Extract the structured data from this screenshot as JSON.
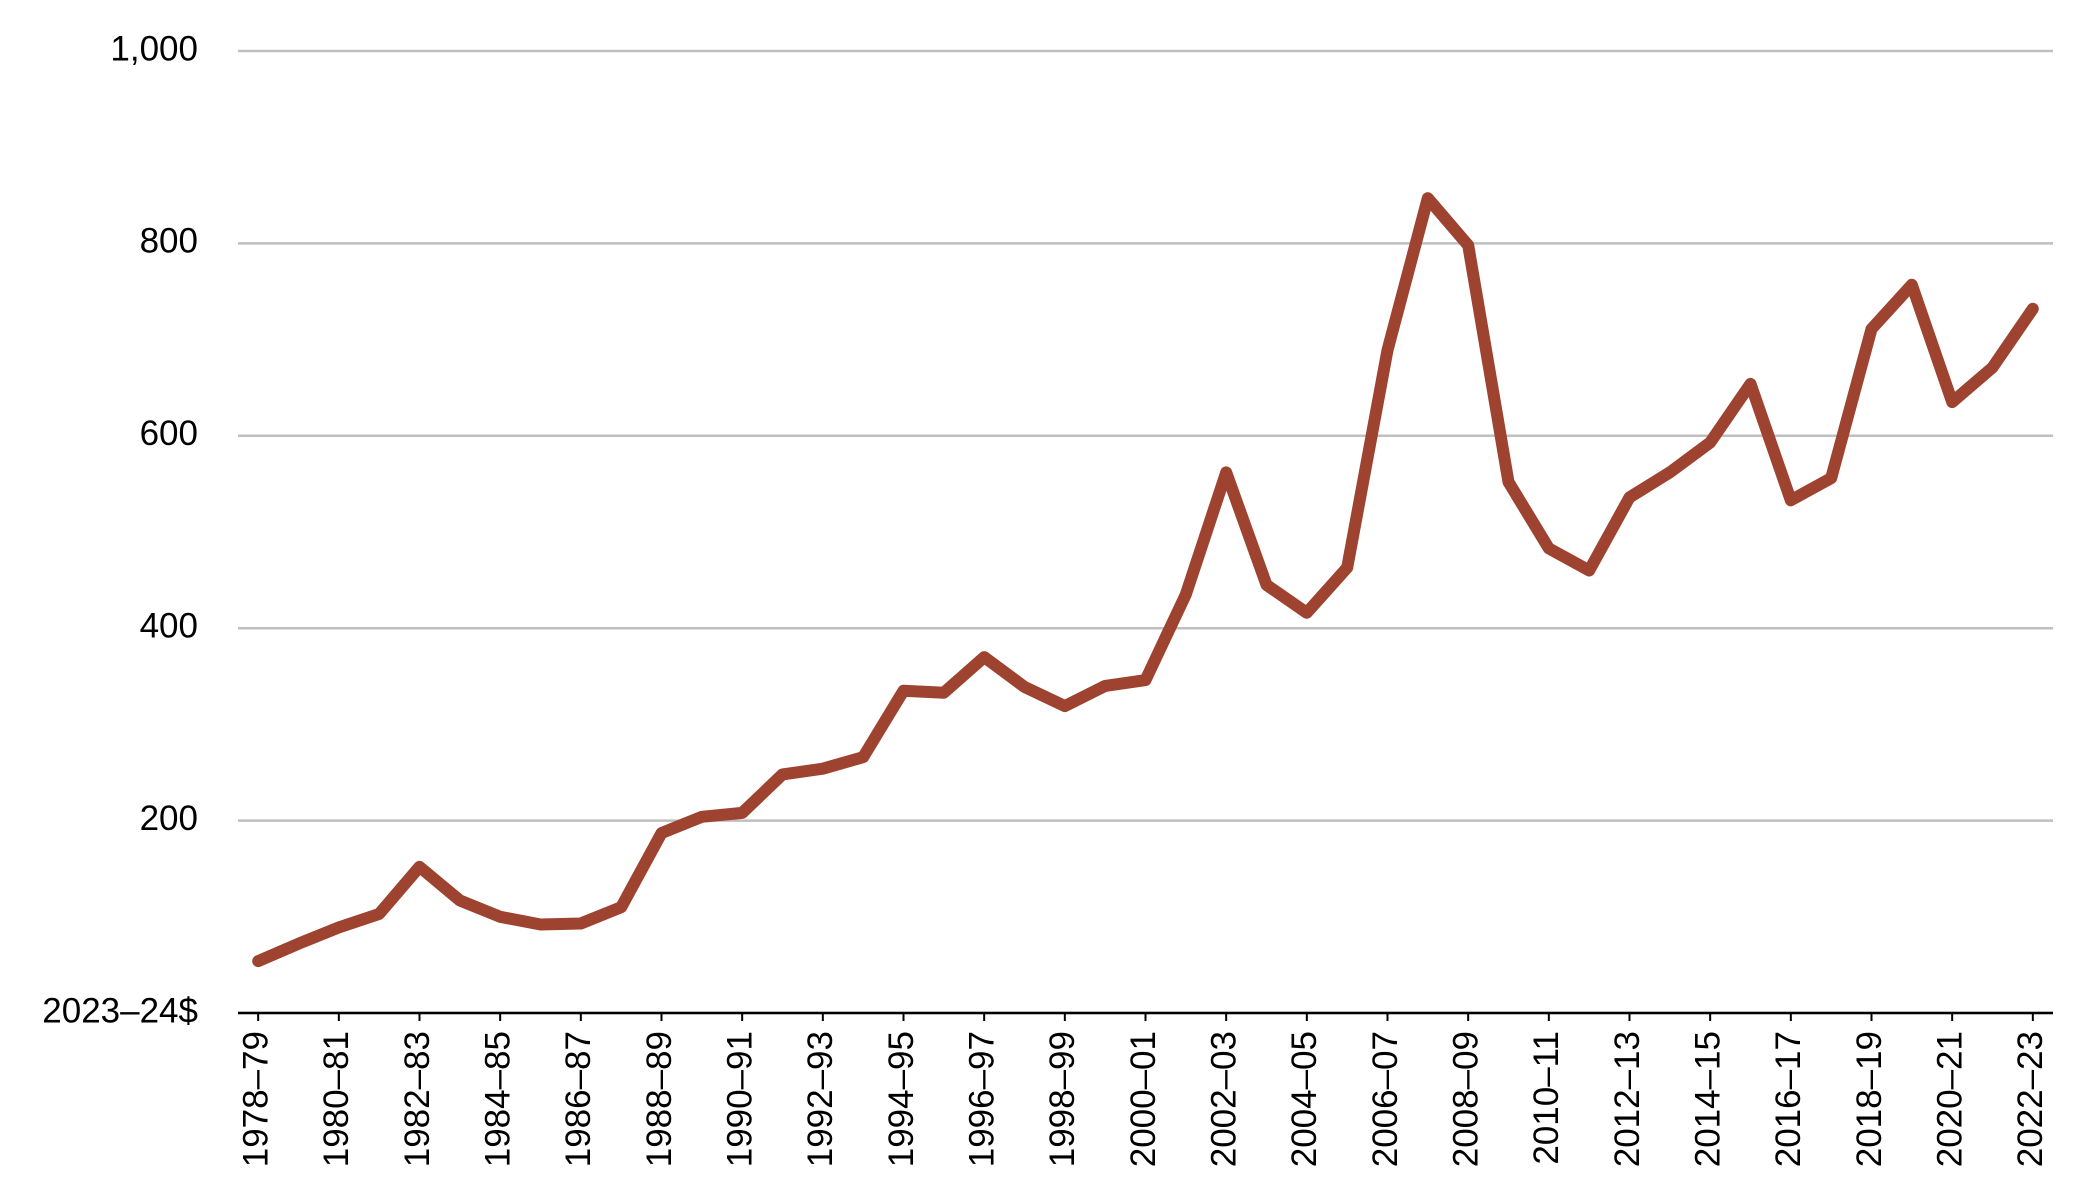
{
  "chart_data": {
    "type": "line",
    "categories": [
      "1978–79",
      null,
      "1980–81",
      null,
      "1982–83",
      null,
      "1984–85",
      null,
      "1986–87",
      null,
      "1988–89",
      null,
      "1990–91",
      null,
      "1992–93",
      null,
      "1994–95",
      null,
      "1996–97",
      null,
      "1998–99",
      null,
      "2000–01",
      null,
      "2002–03",
      null,
      "2004–05",
      null,
      "2006–07",
      null,
      "2008–09",
      null,
      "2010–11",
      null,
      "2012–13",
      null,
      "2014–15",
      null,
      "2016–17",
      null,
      "2018–19",
      null,
      "2020–21",
      null,
      "2022–23"
    ],
    "values": [
      54,
      72,
      89,
      103,
      152,
      117,
      100,
      92,
      93,
      110,
      187,
      204,
      208,
      248,
      254,
      266,
      335,
      333,
      370,
      339,
      319,
      340,
      346,
      435,
      562,
      445,
      416,
      463,
      689,
      847,
      798,
      552,
      483,
      460,
      536,
      562,
      593,
      654,
      533,
      556,
      711,
      757,
      635,
      671,
      732
    ],
    "color": "#9e4330",
    "ylim": [
      0,
      1000
    ],
    "yticks": [
      {
        "value": 0,
        "label": "2023–24$"
      },
      200,
      400,
      600,
      800,
      {
        "value": 1000,
        "label": "1,000"
      }
    ],
    "grid": true
  }
}
